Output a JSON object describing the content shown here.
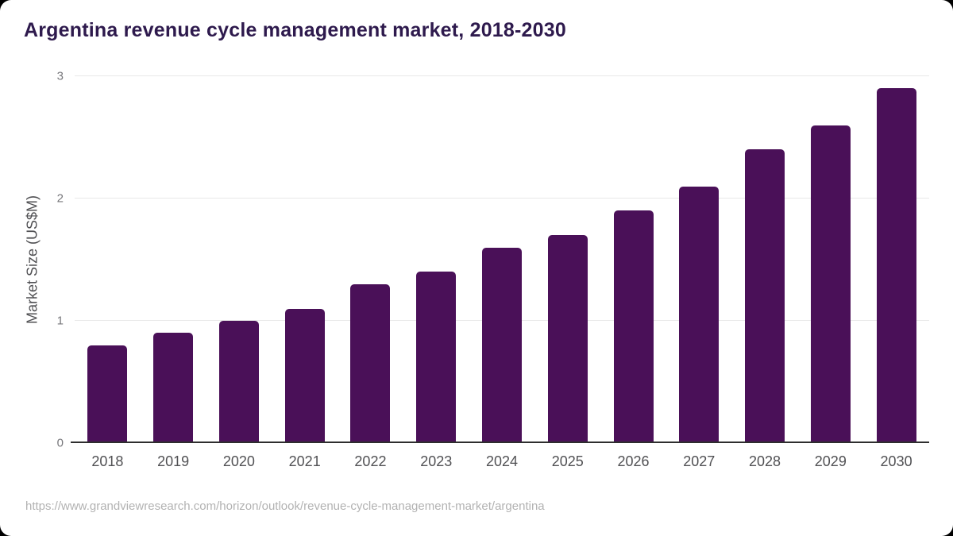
{
  "title": "Argentina revenue cycle management market, 2018-2030",
  "source_url": "https://www.grandviewresearch.com/horizon/outlook/revenue-cycle-management-market/argentina",
  "colors": {
    "bar": "#4a1058",
    "title": "#2e1a4d",
    "grid": "#e8e8e8",
    "axis": "#2e2e2e",
    "y_tick": "#77777b",
    "x_tick": "#515154",
    "axis_title": "#4f4f52",
    "url_text": "#b2b2b2",
    "background": "#ffffff"
  },
  "chart_data": {
    "type": "bar",
    "title": "Argentina revenue cycle management market, 2018-2030",
    "categories": [
      "2018",
      "2019",
      "2020",
      "2021",
      "2022",
      "2023",
      "2024",
      "2025",
      "2026",
      "2027",
      "2028",
      "2029",
      "2030"
    ],
    "values": [
      0.8,
      0.9,
      1.0,
      1.1,
      1.3,
      1.4,
      1.6,
      1.7,
      1.9,
      2.1,
      2.4,
      2.6,
      2.9
    ],
    "xlabel": "",
    "ylabel": "Market Size (US$M)",
    "ylim": [
      0,
      3
    ],
    "yticks": [
      0,
      1,
      2,
      3
    ],
    "grid": "horizontal",
    "legend_position": "none"
  }
}
